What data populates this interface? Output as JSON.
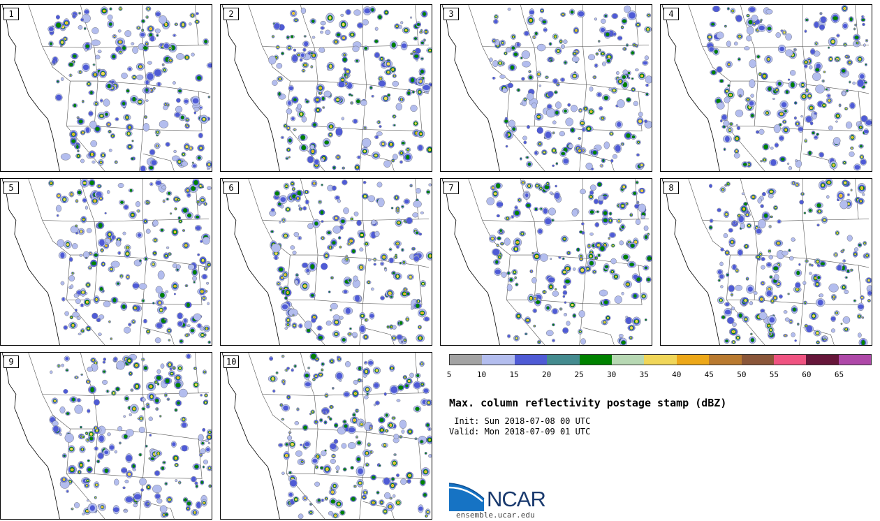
{
  "panels": [
    {
      "label": "1"
    },
    {
      "label": "2"
    },
    {
      "label": "3"
    },
    {
      "label": "4"
    },
    {
      "label": "5"
    },
    {
      "label": "6"
    },
    {
      "label": "7"
    },
    {
      "label": "8"
    },
    {
      "label": "9"
    },
    {
      "label": "10"
    }
  ],
  "colorbar": {
    "ticks": [
      "5",
      "10",
      "15",
      "20",
      "25",
      "30",
      "35",
      "40",
      "45",
      "50",
      "55",
      "60",
      "65"
    ],
    "colors": [
      "#a3a3a3",
      "#b3bdee",
      "#4f5bd5",
      "#448b8f",
      "#008200",
      "#b7d8b3",
      "#f0d659",
      "#eda819",
      "#b97a30",
      "#8a5639",
      "#ef5381",
      "#66163a",
      "#ae48a8"
    ]
  },
  "title": "Max. column reflectivity postage stamp (dBZ)",
  "init": " Init: Sun 2018-07-08 00 UTC",
  "valid": "Valid: Mon 2018-07-09 01 UTC",
  "logo": {
    "text": "NCAR",
    "site": "ensemble.ucar.edu"
  }
}
